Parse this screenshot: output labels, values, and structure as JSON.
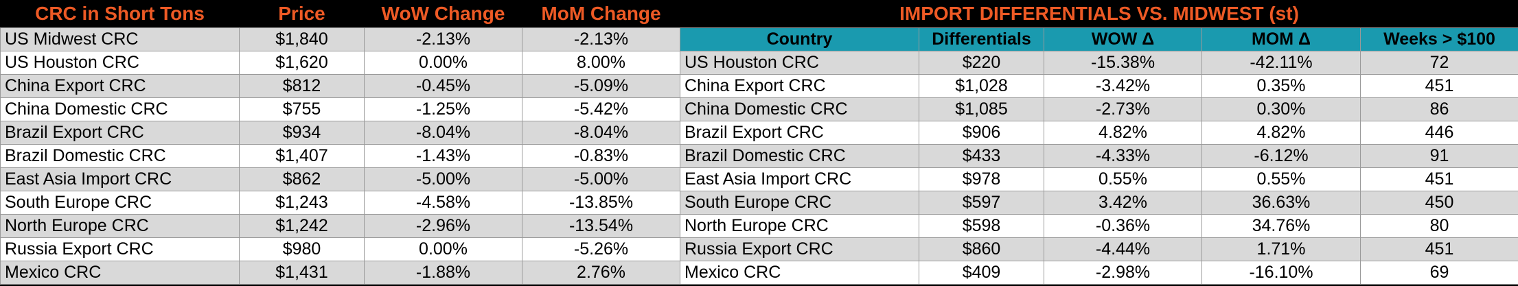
{
  "left": {
    "headers": [
      "CRC in Short Tons",
      "Price",
      "WoW Change",
      "MoM Change"
    ],
    "rows": [
      [
        "US Midwest CRC",
        "$1,840",
        "-2.13%",
        "-2.13%"
      ],
      [
        "US Houston CRC",
        "$1,620",
        "0.00%",
        "8.00%"
      ],
      [
        "China Export CRC",
        "$812",
        "-0.45%",
        "-5.09%"
      ],
      [
        "China Domestic CRC",
        "$755",
        "-1.25%",
        "-5.42%"
      ],
      [
        "Brazil Export CRC",
        "$934",
        "-8.04%",
        "-8.04%"
      ],
      [
        "Brazil Domestic CRC",
        "$1,407",
        "-1.43%",
        "-0.83%"
      ],
      [
        "East Asia Import CRC",
        "$862",
        "-5.00%",
        "-5.00%"
      ],
      [
        "South Europe CRC",
        "$1,243",
        "-4.58%",
        "-13.85%"
      ],
      [
        "North Europe CRC",
        "$1,242",
        "-2.96%",
        "-13.54%"
      ],
      [
        "Russia Export CRC",
        "$980",
        "0.00%",
        "-5.26%"
      ],
      [
        "Mexico CRC",
        "$1,431",
        "-1.88%",
        "2.76%"
      ]
    ]
  },
  "right": {
    "title": "IMPORT DIFFERENTIALS VS. MIDWEST (st)",
    "headers": [
      "Country",
      "Differentials",
      "WOW Δ",
      "MOM Δ",
      "Weeks > $100"
    ],
    "rows": [
      [
        "US Houston CRC",
        "$220",
        "-15.38%",
        "-42.11%",
        "72"
      ],
      [
        "China Export CRC",
        "$1,028",
        "-3.42%",
        "0.35%",
        "451"
      ],
      [
        "China Domestic CRC",
        "$1,085",
        "-2.73%",
        "0.30%",
        "86"
      ],
      [
        "Brazil Export CRC",
        "$906",
        "4.82%",
        "4.82%",
        "446"
      ],
      [
        "Brazil Domestic CRC",
        "$433",
        "-4.33%",
        "-6.12%",
        "91"
      ],
      [
        "East Asia Import CRC",
        "$978",
        "0.55%",
        "0.55%",
        "451"
      ],
      [
        "South Europe CRC",
        "$597",
        "3.42%",
        "36.63%",
        "450"
      ],
      [
        "North Europe CRC",
        "$598",
        "-0.36%",
        "34.76%",
        "80"
      ],
      [
        "Russia Export CRC",
        "$860",
        "-4.44%",
        "1.71%",
        "451"
      ],
      [
        "Mexico CRC",
        "$409",
        "-2.98%",
        "-16.10%",
        "69"
      ]
    ]
  }
}
